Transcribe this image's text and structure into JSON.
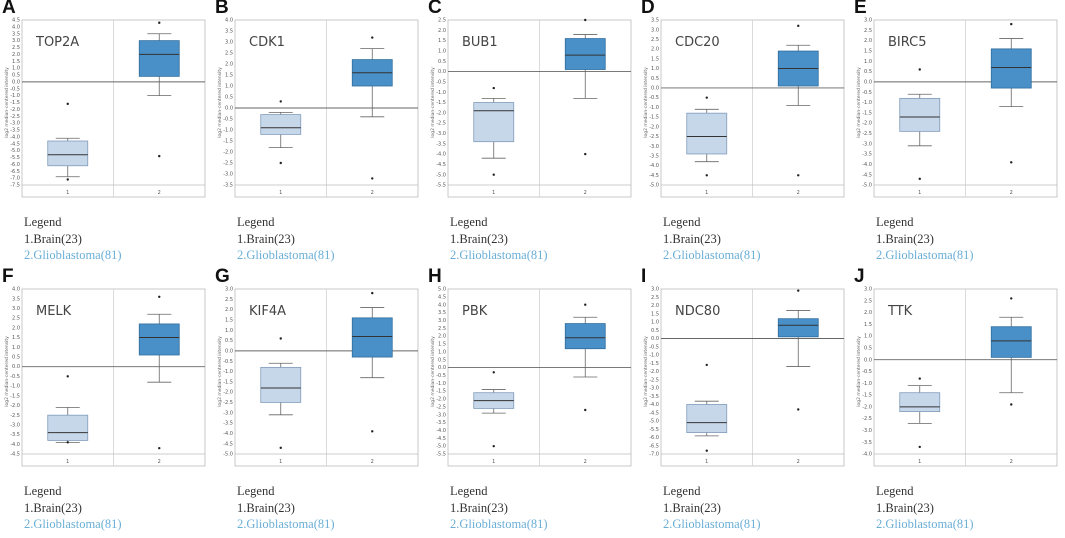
{
  "figure": {
    "legend_title": "Legend",
    "group1": "1.Brain(23)",
    "group2": "2.Glioblastoma(81)",
    "ylabel": "log2 median-centered intensity",
    "colors": {
      "box1_fill": "#c6d7ea",
      "box1_edge": "#7f9bbb",
      "box2_fill": "#4a90c8",
      "box2_edge": "#2f6d9d",
      "axis": "#bbbbbb",
      "zero_line": "#666666"
    }
  },
  "chart_data": [
    {
      "type": "box",
      "label": "A",
      "title": "TOP2A",
      "categories": [
        "1",
        "2"
      ],
      "ylim": [
        -7.5,
        4.5
      ],
      "ystep": 0.5,
      "yticks": [
        "4.5",
        "4.0",
        "3.5",
        "3.0",
        "2.5",
        "2.0",
        "1.5",
        "1.0",
        "0.5",
        "0.0",
        "-0.5",
        "-1.0",
        "-1.5",
        "-2.0",
        "-2.5",
        "-3.0",
        "-3.5",
        "-4.0",
        "-4.5",
        "-5.0",
        "-5.5",
        "-6.0",
        "-6.5",
        "-7.0",
        "-7.5"
      ],
      "boxes": [
        {
          "low": -6.9,
          "q1": -6.1,
          "median": -5.3,
          "q3": -4.3,
          "high": -4.1,
          "outliers": [
            -1.6,
            -7.1
          ]
        },
        {
          "low": -1.0,
          "q1": 0.4,
          "median": 2.0,
          "q3": 3.0,
          "high": 3.5,
          "outliers": [
            4.3,
            -5.4
          ]
        }
      ]
    },
    {
      "type": "box",
      "label": "B",
      "title": "CDK1",
      "categories": [
        "1",
        "2"
      ],
      "ylim": [
        -3.5,
        4.0
      ],
      "ystep": 0.5,
      "yticks": [
        "4.0",
        "3.5",
        "3.0",
        "2.5",
        "2.0",
        "1.5",
        "1.0",
        "0.5",
        "0.0",
        "-0.5",
        "-1.0",
        "-1.5",
        "-2.0",
        "-2.5",
        "-3.0",
        "-3.5"
      ],
      "boxes": [
        {
          "low": -1.8,
          "q1": -1.2,
          "median": -0.9,
          "q3": -0.3,
          "high": -0.2,
          "outliers": [
            0.3,
            -2.5
          ]
        },
        {
          "low": -0.4,
          "q1": 1.0,
          "median": 1.6,
          "q3": 2.2,
          "high": 2.7,
          "outliers": [
            3.2,
            -3.2
          ]
        }
      ]
    },
    {
      "type": "box",
      "label": "C",
      "title": "BUB1",
      "categories": [
        "1",
        "2"
      ],
      "ylim": [
        -5.5,
        2.5
      ],
      "ystep": 0.5,
      "yticks": [
        "2.5",
        "2.0",
        "1.5",
        "1.0",
        "0.5",
        "0.0",
        "-0.5",
        "-1.0",
        "-1.5",
        "-2.0",
        "-2.5",
        "-3.0",
        "-3.5",
        "-4.0",
        "-4.5",
        "-5.0",
        "-5.5"
      ],
      "boxes": [
        {
          "low": -4.2,
          "q1": -3.4,
          "median": -1.9,
          "q3": -1.5,
          "high": -1.3,
          "outliers": [
            -0.8,
            -5.0
          ]
        },
        {
          "low": -1.3,
          "q1": 0.1,
          "median": 0.8,
          "q3": 1.6,
          "high": 1.8,
          "outliers": [
            2.5,
            -4.0
          ]
        }
      ]
    },
    {
      "type": "box",
      "label": "D",
      "title": "CDC20",
      "categories": [
        "1",
        "2"
      ],
      "ylim": [
        -5.0,
        3.5
      ],
      "ystep": 0.5,
      "yticks": [
        "3.5",
        "3.0",
        "2.5",
        "2.0",
        "1.5",
        "1.0",
        "0.5",
        "0.0",
        "-0.5",
        "-1.0",
        "-1.5",
        "-2.0",
        "-2.5",
        "-3.0",
        "-3.5",
        "-4.0",
        "-4.5",
        "-5.0"
      ],
      "boxes": [
        {
          "low": -3.8,
          "q1": -3.4,
          "median": -2.5,
          "q3": -1.3,
          "high": -1.1,
          "outliers": [
            -0.5,
            -4.5
          ]
        },
        {
          "low": -0.9,
          "q1": 0.1,
          "median": 1.0,
          "q3": 1.9,
          "high": 2.2,
          "outliers": [
            3.2,
            -4.5
          ]
        }
      ]
    },
    {
      "type": "box",
      "label": "E",
      "title": "BIRC5",
      "categories": [
        "1",
        "2"
      ],
      "ylim": [
        -5.0,
        3.0
      ],
      "ystep": 0.5,
      "yticks": [
        "3.0",
        "2.5",
        "2.0",
        "1.5",
        "1.0",
        "0.5",
        "0.0",
        "-0.5",
        "-1.0",
        "-1.5",
        "-2.0",
        "-2.5",
        "-3.0",
        "-3.5",
        "-4.0",
        "-4.5",
        "-5.0"
      ],
      "boxes": [
        {
          "low": -3.1,
          "q1": -2.4,
          "median": -1.7,
          "q3": -0.8,
          "high": -0.6,
          "outliers": [
            0.6,
            -4.7
          ]
        },
        {
          "low": -1.2,
          "q1": -0.3,
          "median": 0.7,
          "q3": 1.6,
          "high": 2.1,
          "outliers": [
            2.8,
            -3.9
          ]
        }
      ]
    },
    {
      "type": "box",
      "label": "F",
      "title": "MELK",
      "categories": [
        "1",
        "2"
      ],
      "ylim": [
        -4.5,
        4.0
      ],
      "ystep": 0.5,
      "yticks": [
        "4.0",
        "3.5",
        "3.0",
        "2.5",
        "2.0",
        "1.5",
        "1.0",
        "0.5",
        "0.0",
        "-0.5",
        "-1.0",
        "-1.5",
        "-2.0",
        "-2.5",
        "-3.0",
        "-3.5",
        "-4.0",
        "-4.5"
      ],
      "boxes": [
        {
          "low": -3.9,
          "q1": -3.8,
          "median": -3.4,
          "q3": -2.5,
          "high": -2.1,
          "outliers": [
            -0.5,
            -3.9
          ]
        },
        {
          "low": -0.8,
          "q1": 0.6,
          "median": 1.5,
          "q3": 2.2,
          "high": 2.7,
          "outliers": [
            3.6,
            -4.2
          ]
        }
      ]
    },
    {
      "type": "box",
      "label": "G",
      "title": "KIF4A",
      "categories": [
        "1",
        "2"
      ],
      "ylim": [
        -5.0,
        3.0
      ],
      "ystep": 0.5,
      "yticks": [
        "3.0",
        "2.5",
        "2.0",
        "1.5",
        "1.0",
        "0.5",
        "0.0",
        "-0.5",
        "-1.0",
        "-1.5",
        "-2.0",
        "-2.5",
        "-3.0",
        "-3.5",
        "-4.0",
        "-4.5",
        "-5.0"
      ],
      "boxes": [
        {
          "low": -3.1,
          "q1": -2.5,
          "median": -1.8,
          "q3": -0.8,
          "high": -0.6,
          "outliers": [
            0.6,
            -4.7
          ]
        },
        {
          "low": -1.3,
          "q1": -0.3,
          "median": 0.7,
          "q3": 1.6,
          "high": 2.1,
          "outliers": [
            2.8,
            -3.9
          ]
        }
      ]
    },
    {
      "type": "box",
      "label": "H",
      "title": "PBK",
      "categories": [
        "1",
        "2"
      ],
      "ylim": [
        -5.5,
        5.0
      ],
      "ystep": 0.5,
      "yticks": [
        "5.0",
        "4.5",
        "4.0",
        "3.5",
        "3.0",
        "2.5",
        "2.0",
        "1.5",
        "1.0",
        "0.5",
        "0.0",
        "-0.5",
        "-1.0",
        "-1.5",
        "-2.0",
        "-2.5",
        "-3.0",
        "-3.5",
        "-4.0",
        "-4.5",
        "-5.0",
        "-5.5"
      ],
      "boxes": [
        {
          "low": -2.9,
          "q1": -2.6,
          "median": -2.1,
          "q3": -1.6,
          "high": -1.4,
          "outliers": [
            -0.3,
            -5.0
          ]
        },
        {
          "low": -0.6,
          "q1": 1.2,
          "median": 1.9,
          "q3": 2.8,
          "high": 3.2,
          "outliers": [
            4.0,
            -2.7
          ]
        }
      ]
    },
    {
      "type": "box",
      "label": "I",
      "title": "NDC80",
      "categories": [
        "1",
        "2"
      ],
      "ylim": [
        -7.0,
        3.0
      ],
      "ystep": 0.5,
      "yticks": [
        "3.0",
        "2.5",
        "2.0",
        "1.5",
        "1.0",
        "0.5",
        "0.0",
        "-0.5",
        "-1.0",
        "-1.5",
        "-2.0",
        "-2.5",
        "-3.0",
        "-3.5",
        "-4.0",
        "-4.5",
        "-5.0",
        "-5.5",
        "-6.0",
        "-6.5",
        "-7.0"
      ],
      "boxes": [
        {
          "low": -5.9,
          "q1": -5.7,
          "median": -5.1,
          "q3": -4.0,
          "high": -3.8,
          "outliers": [
            -1.6,
            -6.8
          ]
        },
        {
          "low": -1.7,
          "q1": 0.1,
          "median": 0.8,
          "q3": 1.2,
          "high": 1.7,
          "outliers": [
            2.9,
            -4.3
          ]
        }
      ]
    },
    {
      "type": "box",
      "label": "J",
      "title": "TTK",
      "categories": [
        "1",
        "2"
      ],
      "ylim": [
        -4.0,
        3.0
      ],
      "ystep": 0.5,
      "yticks": [
        "3.0",
        "2.5",
        "2.0",
        "1.5",
        "1.0",
        "0.5",
        "0.0",
        "-0.5",
        "-1.0",
        "-1.5",
        "-2.0",
        "-2.5",
        "-3.0",
        "-3.5",
        "-4.0"
      ],
      "boxes": [
        {
          "low": -2.7,
          "q1": -2.2,
          "median": -2.0,
          "q3": -1.4,
          "high": -1.1,
          "outliers": [
            -0.8,
            -3.7
          ]
        },
        {
          "low": -1.4,
          "q1": 0.1,
          "median": 0.8,
          "q3": 1.4,
          "high": 1.8,
          "outliers": [
            2.6,
            -1.9
          ]
        }
      ]
    }
  ]
}
